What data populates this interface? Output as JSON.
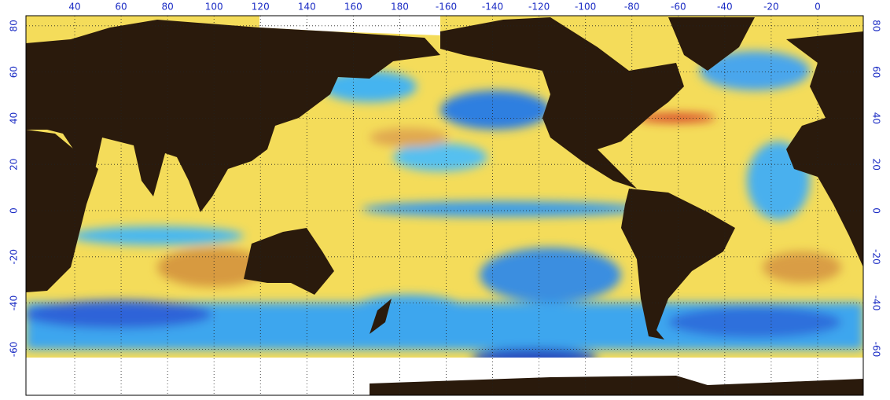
{
  "map": {
    "top_labels": [
      40,
      60,
      80,
      100,
      120,
      140,
      160,
      180,
      -160,
      -140,
      -120,
      -100,
      -80,
      -60,
      -40,
      -20,
      0
    ],
    "left_labels": [
      80,
      60,
      40,
      20,
      0,
      -20,
      -40,
      -60
    ],
    "right_labels": [
      80,
      60,
      40,
      20,
      0,
      -20,
      -40,
      -60
    ]
  }
}
